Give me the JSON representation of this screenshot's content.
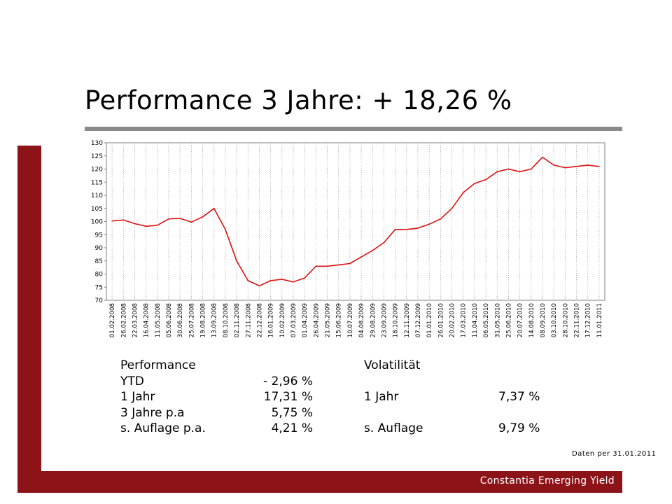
{
  "title": "Performance 3 Jahre: + 18,26 %",
  "footer": "Constantia Emerging Yield",
  "data_date": "Daten per 31.01.2011",
  "colors": {
    "accent": "#8c1419",
    "series": "#dd1111",
    "rule": "#8a8a8a"
  },
  "performance": {
    "heading": "Performance",
    "rows": [
      {
        "label": "YTD",
        "value": "- 2,96 %"
      },
      {
        "label": "1 Jahr",
        "value": "17,31 %"
      },
      {
        "label": "3 Jahre p.a",
        "value": "5,75 %"
      },
      {
        "label": "s. Auflage p.a.",
        "value": "4,21 %"
      }
    ]
  },
  "volatility": {
    "heading": "Volatilität",
    "rows": [
      {
        "label": "1 Jahr",
        "value": "7,37 %"
      },
      {
        "label": "s. Auflage",
        "value": "9,79 %"
      }
    ]
  },
  "chart_data": {
    "type": "line",
    "title": "",
    "xlabel": "",
    "ylabel": "",
    "ylim": [
      70,
      130
    ],
    "yticks": [
      70,
      75,
      80,
      85,
      90,
      95,
      100,
      105,
      110,
      115,
      120,
      125,
      130
    ],
    "grid": "vertical dotted",
    "legend": "none",
    "categories": [
      "01.02.2008",
      "26.02.2008",
      "22.03.2008",
      "16.04.2008",
      "11.05.2008",
      "05.06.2008",
      "30.06.2008",
      "25.07.2008",
      "19.08.2008",
      "13.09.2008",
      "08.10.2008",
      "02.11.2008",
      "27.11.2008",
      "22.12.2008",
      "16.01.2009",
      "10.02.2009",
      "07.03.2009",
      "01.04.2009",
      "26.04.2009",
      "21.05.2009",
      "15.06.2009",
      "10.07.2009",
      "04.08.2009",
      "29.08.2009",
      "23.09.2009",
      "18.10.2009",
      "12.11.2009",
      "07.12.2009",
      "01.01.2010",
      "26.01.2010",
      "20.02.2010",
      "17.03.2010",
      "11.04.2010",
      "06.05.2010",
      "31.05.2010",
      "25.06.2010",
      "20.07.2010",
      "14.08.2010",
      "08.09.2010",
      "03.10.2010",
      "28.10.2010",
      "22.11.2010",
      "17.12.2010",
      "11.01.2011"
    ],
    "series": [
      {
        "values": [
          100.2,
          100.6,
          99.2,
          98.2,
          98.6,
          101.0,
          101.2,
          99.8,
          101.8,
          105.0,
          97.0,
          85.0,
          77.5,
          75.5,
          77.5,
          78.0,
          77.0,
          78.5,
          83.0,
          83.0,
          83.5,
          84.0,
          86.5,
          89.0,
          92.0,
          97.0,
          97.0,
          97.5,
          99.0,
          101.0,
          105.0,
          111.0,
          114.5,
          116.0,
          119.0,
          120.0,
          119.0,
          120.0,
          124.5,
          121.5,
          120.5,
          121.0,
          121.5,
          121.0
        ]
      }
    ]
  }
}
